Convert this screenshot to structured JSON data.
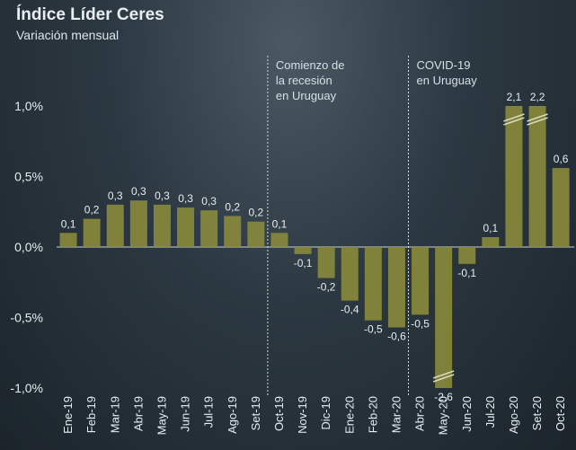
{
  "title": "Índice Líder Ceres",
  "subtitle": "Variación mensual",
  "colors": {
    "bar": "#8a8a3a",
    "text": "#e6edf1",
    "zero_line": "#c8d2d8",
    "annotation_line": "#d0d8dd"
  },
  "chart_data": {
    "type": "bar",
    "categories": [
      "Ene-19",
      "Feb-19",
      "Mar-19",
      "Abr-19",
      "May-19",
      "Jun-19",
      "Jul-19",
      "Ago-19",
      "Set-19",
      "Oct-19",
      "Nov-19",
      "Dic-19",
      "Ene-20",
      "Feb-20",
      "Mar-20",
      "Abr-20",
      "May-20",
      "Jun-20",
      "Jul-20",
      "Ago-20",
      "Set-20",
      "Oct-20"
    ],
    "values": [
      0.1,
      0.2,
      0.3,
      0.33,
      0.3,
      0.28,
      0.26,
      0.22,
      0.18,
      0.1,
      -0.05,
      -0.22,
      -0.38,
      -0.52,
      -0.57,
      -0.48,
      -2.6,
      -0.12,
      0.07,
      2.1,
      2.2,
      0.56
    ],
    "data_labels": [
      "0,1",
      "0,2",
      "0,3",
      "0,3",
      "0,3",
      "0,3",
      "0,3",
      "0,2",
      "0,2",
      "0,1",
      "-0,1",
      "-0,2",
      "-0,4",
      "-0,5",
      "-0,6",
      "-0,5",
      "-2,6",
      "-0,1",
      "0,1",
      "2,1",
      "2,2",
      "0,6"
    ],
    "truncated": [
      "May-20",
      "Ago-20",
      "Set-20"
    ],
    "ylim": [
      -1.0,
      1.0
    ],
    "yticks": [
      1.0,
      0.5,
      0.0,
      -0.5,
      -1.0
    ],
    "ytick_labels": [
      "1,0%",
      "0,5%",
      "0,0%",
      "-0,5%",
      "-1,0%"
    ],
    "annotations": [
      {
        "after_category": "Set-19",
        "lines": [
          "Comienzo de",
          "la recesión",
          "en Uruguay"
        ]
      },
      {
        "after_category": "Mar-20",
        "lines": [
          "COVID-19",
          "en Uruguay"
        ]
      }
    ],
    "xlabel": "",
    "ylabel": ""
  }
}
